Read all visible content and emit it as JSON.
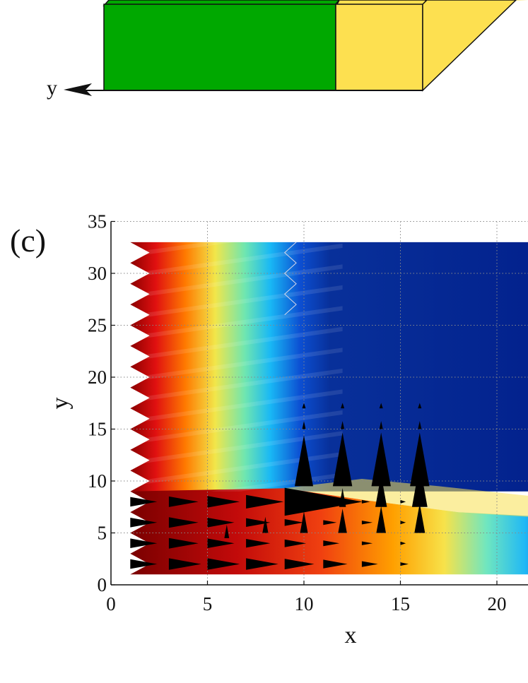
{
  "top_panel": {
    "axis_label": "y",
    "colors": {
      "green_block": "#00a800",
      "yellow_block": "#fde050",
      "outline": "#111111"
    }
  },
  "panel_label": "(c)",
  "chart_data": {
    "type": "heatmap",
    "xlabel": "x",
    "ylabel": "y",
    "xlim": [
      0,
      22
    ],
    "ylim": [
      0,
      35
    ],
    "xticks": [
      0,
      5,
      10,
      15,
      20
    ],
    "yticks": [
      0,
      5,
      10,
      15,
      20,
      25,
      30,
      35
    ],
    "grid": "dotted",
    "colormap": "jet",
    "field_extent": {
      "x": [
        1,
        22
      ],
      "y": [
        1,
        33
      ]
    },
    "quiver": [
      {
        "x": 1,
        "y": 2,
        "u": 1.0,
        "v": 0
      },
      {
        "x": 3,
        "y": 2,
        "u": 1.2,
        "v": 0
      },
      {
        "x": 5,
        "y": 2,
        "u": 1.2,
        "v": 0
      },
      {
        "x": 7,
        "y": 2,
        "u": 1.2,
        "v": 0
      },
      {
        "x": 9,
        "y": 2,
        "u": 1.1,
        "v": 0
      },
      {
        "x": 11,
        "y": 2,
        "u": 0.9,
        "v": 0
      },
      {
        "x": 13,
        "y": 2,
        "u": 0.6,
        "v": 0
      },
      {
        "x": 15,
        "y": 2,
        "u": 0.3,
        "v": 0
      },
      {
        "x": 1,
        "y": 4,
        "u": 1.0,
        "v": 0
      },
      {
        "x": 3,
        "y": 4,
        "u": 1.1,
        "v": 0
      },
      {
        "x": 5,
        "y": 4,
        "u": 1.0,
        "v": 0
      },
      {
        "x": 7,
        "y": 4,
        "u": 0.9,
        "v": 0
      },
      {
        "x": 9,
        "y": 4,
        "u": 0.8,
        "v": 0
      },
      {
        "x": 11,
        "y": 4,
        "u": 0.6,
        "v": 0
      },
      {
        "x": 13,
        "y": 4,
        "u": 0.4,
        "v": 0
      },
      {
        "x": 15,
        "y": 4,
        "u": 0.2,
        "v": 0
      },
      {
        "x": 1,
        "y": 6,
        "u": 1.0,
        "v": 0
      },
      {
        "x": 3,
        "y": 6,
        "u": 1.1,
        "v": 0
      },
      {
        "x": 5,
        "y": 6,
        "u": 1.0,
        "v": 0
      },
      {
        "x": 7,
        "y": 6,
        "u": 0.9,
        "v": 0
      },
      {
        "x": 9,
        "y": 6,
        "u": 0.7,
        "v": 0
      },
      {
        "x": 11,
        "y": 6,
        "u": 0.5,
        "v": 0
      },
      {
        "x": 13,
        "y": 6,
        "u": 0.4,
        "v": 0
      },
      {
        "x": 15,
        "y": 6,
        "u": 0.2,
        "v": 0
      },
      {
        "x": 1,
        "y": 8,
        "u": 1.0,
        "v": 0
      },
      {
        "x": 3,
        "y": 8,
        "u": 1.1,
        "v": 0
      },
      {
        "x": 5,
        "y": 8,
        "u": 1.2,
        "v": 0
      },
      {
        "x": 7,
        "y": 8,
        "u": 1.4,
        "v": 0
      },
      {
        "x": 9,
        "y": 8,
        "u": 2.9,
        "v": 0
      },
      {
        "x": 11,
        "y": 8,
        "u": 0.4,
        "v": 0
      },
      {
        "x": 13,
        "y": 8,
        "u": 0.3,
        "v": 0
      },
      {
        "x": 15,
        "y": 8,
        "u": 0.2,
        "v": 0
      },
      {
        "x": 6,
        "y": 4.5,
        "u": 0,
        "v": 0.5
      },
      {
        "x": 8,
        "y": 5,
        "u": 0,
        "v": 0.6
      },
      {
        "x": 10,
        "y": 5,
        "u": 0,
        "v": 0.8
      },
      {
        "x": 12,
        "y": 5,
        "u": 0,
        "v": 0.9
      },
      {
        "x": 14,
        "y": 5,
        "u": 0,
        "v": 1.0
      },
      {
        "x": 16,
        "y": 5,
        "u": 0,
        "v": 1.1
      },
      {
        "x": 10,
        "y": 9.5,
        "u": 0,
        "v": 1.9
      },
      {
        "x": 12,
        "y": 9.5,
        "u": 0,
        "v": 2.0
      },
      {
        "x": 14,
        "y": 9.5,
        "u": 0,
        "v": 2.0
      },
      {
        "x": 16,
        "y": 9.5,
        "u": 0,
        "v": 2.0
      },
      {
        "x": 12,
        "y": 7.5,
        "u": 0,
        "v": 0.7
      },
      {
        "x": 14,
        "y": 7.5,
        "u": 0,
        "v": 1.2
      },
      {
        "x": 16,
        "y": 7.5,
        "u": 0,
        "v": 1.6
      },
      {
        "x": 10,
        "y": 13,
        "u": 0,
        "v": 0.5
      },
      {
        "x": 12,
        "y": 13,
        "u": 0,
        "v": 0.5
      },
      {
        "x": 14,
        "y": 13,
        "u": 0,
        "v": 0.5
      },
      {
        "x": 16,
        "y": 13,
        "u": 0,
        "v": 0.5
      },
      {
        "x": 10,
        "y": 15,
        "u": 0,
        "v": 0.3
      },
      {
        "x": 12,
        "y": 15,
        "u": 0,
        "v": 0.3
      },
      {
        "x": 14,
        "y": 15,
        "u": 0,
        "v": 0.3
      },
      {
        "x": 16,
        "y": 15,
        "u": 0,
        "v": 0.3
      },
      {
        "x": 10,
        "y": 17,
        "u": 0,
        "v": 0.2
      },
      {
        "x": 12,
        "y": 17,
        "u": 0,
        "v": 0.2
      },
      {
        "x": 14,
        "y": 17,
        "u": 0,
        "v": 0.2
      },
      {
        "x": 16,
        "y": 17,
        "u": 0,
        "v": 0.2
      }
    ]
  }
}
